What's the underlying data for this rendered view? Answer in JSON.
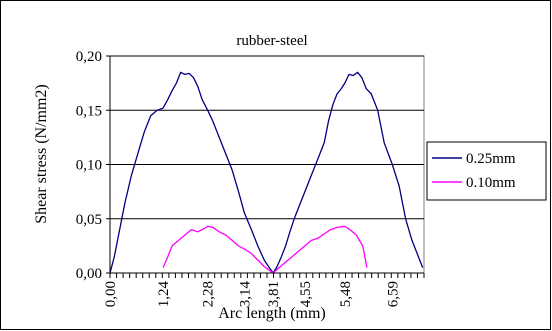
{
  "chart_data": {
    "type": "line",
    "title": "rubber-steel",
    "xlabel": "Arc length (mm)",
    "ylabel": "Shear stress (N/mm2)",
    "ylim": [
      0,
      0.2
    ],
    "y_ticks": [
      "0,00",
      "0,05",
      "0,10",
      "0,15",
      "0,20"
    ],
    "x_tick_labels": [
      "0,00",
      "1,24",
      "2,28",
      "3,14",
      "3,81",
      "4,55",
      "5,48",
      "6,59"
    ],
    "x_tick_positions": [
      0.0,
      1.24,
      2.28,
      3.14,
      3.81,
      4.55,
      5.48,
      6.59
    ],
    "xlim": [
      0,
      7.33
    ],
    "grid": "horizontal",
    "legend_position": "right",
    "series": [
      {
        "name": "0.25mm",
        "color": "#000080",
        "x": [
          0.0,
          0.1,
          0.2,
          0.35,
          0.5,
          0.65,
          0.8,
          0.95,
          1.1,
          1.24,
          1.35,
          1.45,
          1.55,
          1.65,
          1.75,
          1.85,
          1.95,
          2.05,
          2.15,
          2.28,
          2.4,
          2.55,
          2.7,
          2.85,
          3.0,
          3.14,
          3.3,
          3.45,
          3.6,
          3.7,
          3.81,
          3.9,
          4.0,
          4.1,
          4.2,
          4.3,
          4.4,
          4.55,
          4.7,
          4.85,
          5.0,
          5.1,
          5.2,
          5.3,
          5.4,
          5.48,
          5.58,
          5.68,
          5.78,
          5.88,
          5.98,
          6.1,
          6.25,
          6.4,
          6.59,
          6.75,
          6.9,
          7.05,
          7.2,
          7.3
        ],
        "values": [
          0.0,
          0.015,
          0.035,
          0.065,
          0.09,
          0.11,
          0.13,
          0.145,
          0.15,
          0.152,
          0.16,
          0.168,
          0.175,
          0.185,
          0.183,
          0.184,
          0.18,
          0.172,
          0.16,
          0.15,
          0.14,
          0.125,
          0.11,
          0.095,
          0.075,
          0.055,
          0.04,
          0.025,
          0.012,
          0.006,
          0.0,
          0.006,
          0.015,
          0.025,
          0.038,
          0.05,
          0.06,
          0.075,
          0.09,
          0.105,
          0.12,
          0.14,
          0.155,
          0.165,
          0.17,
          0.175,
          0.183,
          0.182,
          0.185,
          0.18,
          0.17,
          0.165,
          0.15,
          0.12,
          0.1,
          0.08,
          0.05,
          0.03,
          0.015,
          0.005
        ]
      },
      {
        "name": "0.10mm",
        "color": "#FF00FF",
        "x": [
          1.24,
          1.35,
          1.45,
          1.6,
          1.75,
          1.9,
          2.05,
          2.2,
          2.28,
          2.4,
          2.55,
          2.7,
          2.85,
          3.0,
          3.14,
          3.3,
          3.45,
          3.6,
          3.7,
          3.81,
          3.95,
          4.1,
          4.25,
          4.4,
          4.55,
          4.7,
          4.85,
          5.0,
          5.15,
          5.3,
          5.48,
          5.6,
          5.75,
          5.9,
          6.0
        ],
        "values": [
          0.005,
          0.015,
          0.025,
          0.03,
          0.035,
          0.04,
          0.038,
          0.041,
          0.043,
          0.042,
          0.038,
          0.035,
          0.03,
          0.025,
          0.022,
          0.018,
          0.012,
          0.006,
          0.003,
          0.0,
          0.005,
          0.01,
          0.015,
          0.02,
          0.025,
          0.03,
          0.032,
          0.036,
          0.04,
          0.042,
          0.043,
          0.04,
          0.035,
          0.025,
          0.005
        ]
      }
    ]
  }
}
